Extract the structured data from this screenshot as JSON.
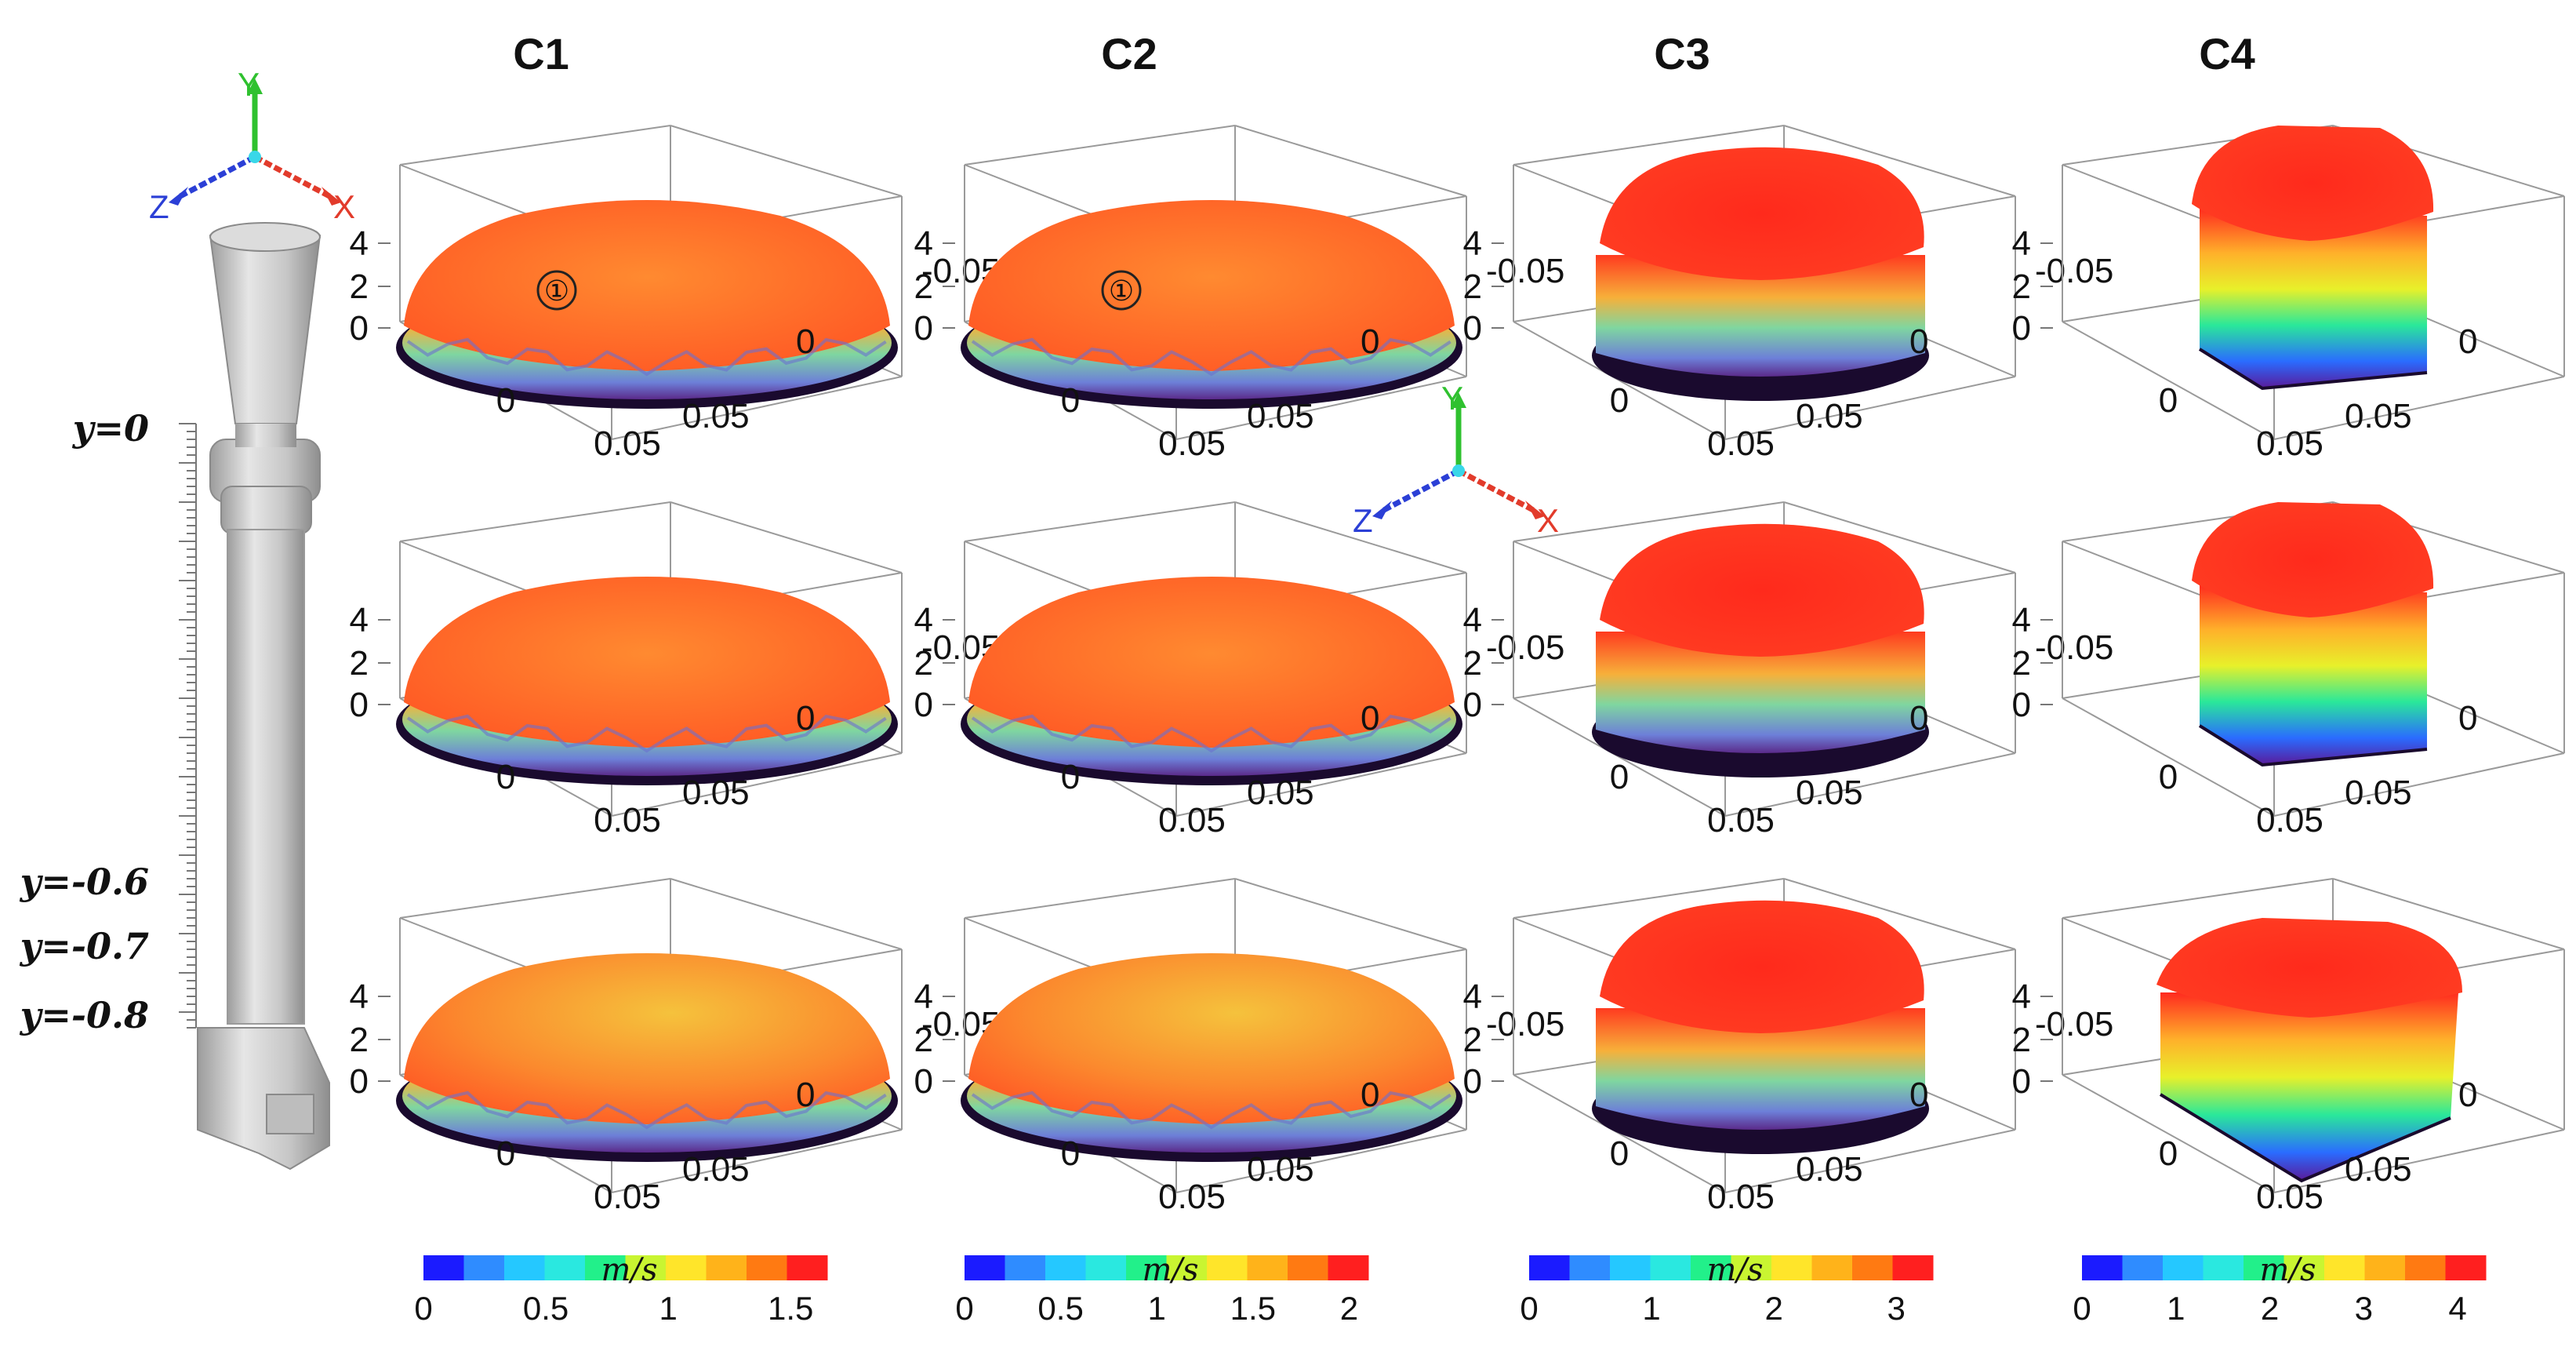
{
  "figure": {
    "columns": [
      {
        "title": "C1",
        "colorbar": {
          "unit": "m/s",
          "ticks": [
            "0",
            "0.5",
            "1",
            "1.5"
          ],
          "min": 0,
          "max": 1.65
        }
      },
      {
        "title": "C2",
        "colorbar": {
          "unit": "m/s",
          "ticks": [
            "0",
            "0.5",
            "1",
            "1.5",
            "2"
          ],
          "min": 0,
          "max": 2.1
        }
      },
      {
        "title": "C3",
        "colorbar": {
          "unit": "m/s",
          "ticks": [
            "0",
            "1",
            "2",
            "3"
          ],
          "min": 0,
          "max": 3.3
        }
      },
      {
        "title": "C4",
        "colorbar": {
          "unit": "m/s",
          "ticks": [
            "0",
            "1",
            "2",
            "3",
            "4"
          ],
          "min": 0,
          "max": 4.3
        }
      }
    ],
    "z_ticks": [
      "4",
      "2",
      "0"
    ],
    "x_ticks": [
      "0",
      "0.05"
    ],
    "depth_ticks": [
      "-0.05",
      "0",
      "0.05"
    ],
    "depth_ticks_truncated": [
      "-0.05",
      "0",
      "0.05"
    ],
    "marker": "①",
    "pipe_labels": [
      "y=0",
      "y=-0.6",
      "y=-0.7",
      "y=-0.8"
    ],
    "axis_labels": {
      "x": "X",
      "y": "Y",
      "z": "Z"
    },
    "colors": {
      "jet": [
        "#1b1bff",
        "#2f8cff",
        "#25c8ff",
        "#2ae8e0",
        "#22f08a",
        "#c9f531",
        "#ffe52a",
        "#ffb31a",
        "#ff7a12",
        "#ff1f1f"
      ],
      "surface_top": "#ff4a22",
      "surface_top_light": "#ff8a2c",
      "surface_top_yellow": "#f7b83a",
      "pipe": "#c9c9c9",
      "pipe_dark": "#9a9a9a",
      "axis_x": "#e23b2b",
      "axis_y": "#2fc12f",
      "axis_z": "#2b3fd6"
    }
  }
}
